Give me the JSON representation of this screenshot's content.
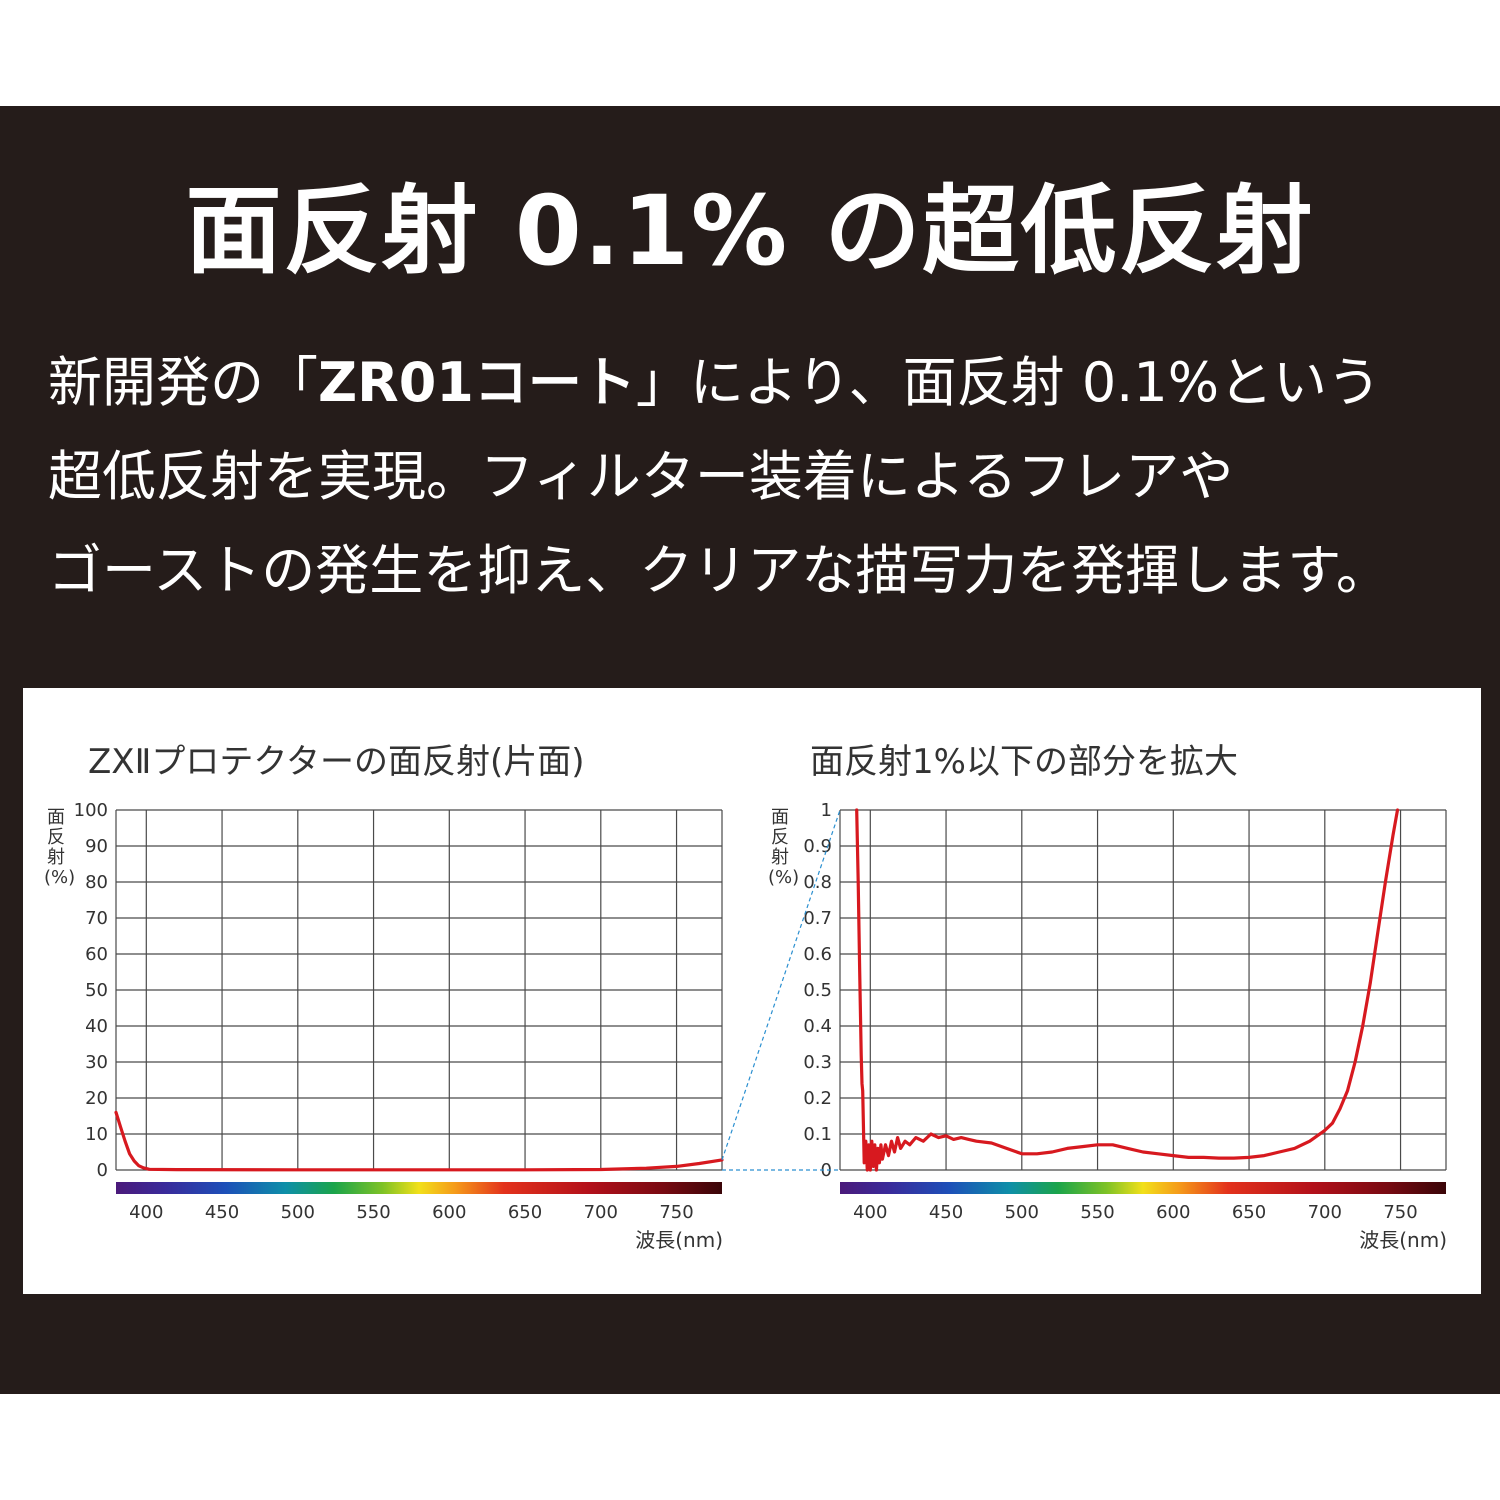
{
  "headline": "面反射 0.1% の超低反射",
  "lead": {
    "line1_pre": "新開発の「",
    "line1_bold": "ZR01コート",
    "line1_post": "」により、面反射 0.1%という",
    "line2": "超低反射を実現。フィルター装着によるフレアや",
    "line3": "ゴーストの発生を抑え、クリアな描写力を発揮します。"
  },
  "colors": {
    "banner": "#251c1a",
    "curve": "#d7191f",
    "grid": "#4a4a4a",
    "connector": "#2a8fd0"
  },
  "chart_data": [
    {
      "type": "line",
      "title": "ZXⅡプロテクターの面反射(片面)",
      "ylabel": "面反射(%)",
      "xlabel": "波長(nm)",
      "xlim": [
        380,
        780
      ],
      "ylim": [
        0,
        100
      ],
      "x_ticks": [
        "400",
        "450",
        "500",
        "550",
        "600",
        "650",
        "700",
        "750"
      ],
      "y_ticks": [
        "0",
        "10",
        "20",
        "30",
        "40",
        "50",
        "60",
        "70",
        "80",
        "90",
        "100"
      ],
      "series": [
        {
          "x": [
            380,
            383,
            386,
            389,
            392,
            395,
            398,
            402,
            420,
            500,
            600,
            650,
            700,
            730,
            750,
            765,
            780
          ],
          "y": [
            16,
            12,
            8,
            4.5,
            2.5,
            1.2,
            0.6,
            0.2,
            0.1,
            0.05,
            0.05,
            0.06,
            0.15,
            0.5,
            1.0,
            1.8,
            2.8
          ]
        }
      ]
    },
    {
      "type": "line",
      "title": "面反射1%以下の部分を拡大",
      "ylabel": "面反射(%)",
      "xlabel": "波長(nm)",
      "xlim": [
        380,
        780
      ],
      "ylim": [
        0,
        1
      ],
      "x_ticks": [
        "400",
        "450",
        "500",
        "550",
        "600",
        "650",
        "700",
        "750"
      ],
      "y_ticks": [
        "0",
        "0.1",
        "0.2",
        "0.3",
        "0.4",
        "0.5",
        "0.6",
        "0.7",
        "0.8",
        "0.9",
        "1"
      ],
      "series": [
        {
          "x": [
            391,
            392,
            393,
            394,
            394.5,
            395,
            396,
            397,
            398,
            399,
            400,
            401,
            402,
            403,
            404,
            405,
            406,
            407,
            408,
            410,
            412,
            414,
            416,
            418,
            420,
            423,
            426,
            430,
            435,
            440,
            445,
            450,
            455,
            460,
            465,
            470,
            480,
            490,
            500,
            510,
            520,
            530,
            540,
            550,
            560,
            570,
            580,
            590,
            600,
            610,
            620,
            630,
            640,
            650,
            660,
            670,
            680,
            690,
            700,
            705,
            710,
            715,
            720,
            725,
            730,
            735,
            740,
            745,
            748
          ],
          "y": [
            1.0,
            0.8,
            0.55,
            0.32,
            0.24,
            0.22,
            0.02,
            0.08,
            0.0,
            0.07,
            0.0,
            0.08,
            0.01,
            0.07,
            0.0,
            0.06,
            0.02,
            0.07,
            0.03,
            0.07,
            0.04,
            0.08,
            0.05,
            0.09,
            0.06,
            0.08,
            0.07,
            0.09,
            0.08,
            0.1,
            0.09,
            0.095,
            0.085,
            0.09,
            0.085,
            0.08,
            0.075,
            0.06,
            0.045,
            0.045,
            0.05,
            0.06,
            0.065,
            0.07,
            0.07,
            0.06,
            0.05,
            0.045,
            0.04,
            0.035,
            0.035,
            0.033,
            0.033,
            0.035,
            0.04,
            0.05,
            0.06,
            0.08,
            0.11,
            0.13,
            0.17,
            0.22,
            0.3,
            0.4,
            0.52,
            0.66,
            0.8,
            0.93,
            1.0
          ]
        }
      ]
    }
  ]
}
